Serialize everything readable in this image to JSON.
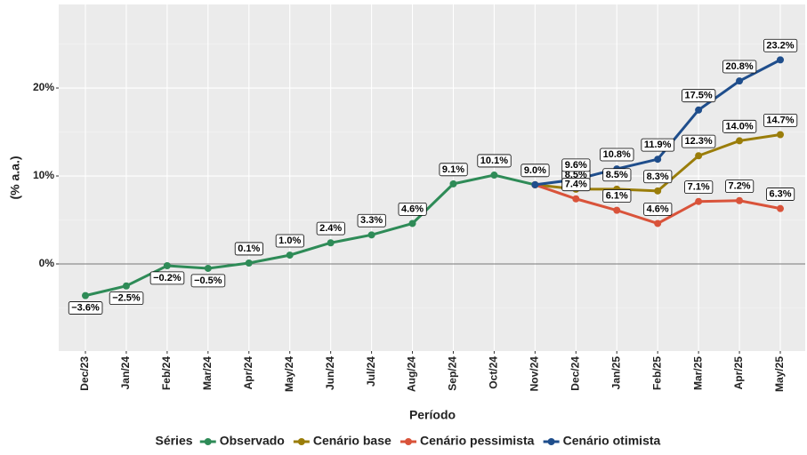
{
  "chart_data": {
    "type": "line",
    "categories": [
      "Dec/23",
      "Jan/24",
      "Feb/24",
      "Mar/24",
      "Apr/24",
      "May/24",
      "Jun/24",
      "Jul/24",
      "Aug/24",
      "Sep/24",
      "Oct/24",
      "Nov/24",
      "Dec/24",
      "Jan/25",
      "Feb/25",
      "Mar/25",
      "Apr/25",
      "May/25"
    ],
    "series": [
      {
        "name": "Observado",
        "color": "#2e8b57",
        "values": [
          -3.6,
          -2.5,
          -0.2,
          -0.5,
          0.1,
          1.0,
          2.4,
          3.3,
          4.6,
          9.1,
          10.1,
          9.0,
          null,
          null,
          null,
          null,
          null,
          null
        ],
        "value_labels": [
          "−3.6%",
          "−2.5%",
          "−0.2%",
          "−0.5%",
          "0.1%",
          "1.0%",
          "2.4%",
          "3.3%",
          "4.6%",
          "9.1%",
          "10.1%",
          "9.0%",
          null,
          null,
          null,
          null,
          null,
          null
        ]
      },
      {
        "name": "Cenário base",
        "color": "#9a7d0a",
        "values": [
          null,
          null,
          null,
          null,
          null,
          null,
          null,
          null,
          null,
          null,
          null,
          9.0,
          8.5,
          8.5,
          8.3,
          12.3,
          14.0,
          14.7
        ],
        "value_labels": [
          null,
          null,
          null,
          null,
          null,
          null,
          null,
          null,
          null,
          null,
          null,
          null,
          "8.5%",
          "8.5%",
          "8.3%",
          "12.3%",
          "14.0%",
          "14.7%"
        ]
      },
      {
        "name": "Cenário pessimista",
        "color": "#d9533a",
        "values": [
          null,
          null,
          null,
          null,
          null,
          null,
          null,
          null,
          null,
          null,
          null,
          9.0,
          7.4,
          6.1,
          4.6,
          7.1,
          7.2,
          6.3
        ],
        "value_labels": [
          null,
          null,
          null,
          null,
          null,
          null,
          null,
          null,
          null,
          null,
          null,
          null,
          "7.4%",
          "6.1%",
          "4.6%",
          "7.1%",
          "7.2%",
          "6.3%"
        ]
      },
      {
        "name": "Cenário otimista",
        "color": "#1f4e8c",
        "values": [
          null,
          null,
          null,
          null,
          null,
          null,
          null,
          null,
          null,
          null,
          null,
          9.0,
          9.6,
          10.8,
          11.9,
          17.5,
          20.8,
          23.2
        ],
        "value_labels": [
          null,
          null,
          null,
          null,
          null,
          null,
          null,
          null,
          null,
          null,
          null,
          null,
          "9.6%",
          "10.8%",
          "11.9%",
          "17.5%",
          "20.8%",
          "23.2%"
        ]
      }
    ],
    "ylim": [
      -9.9,
      29.5
    ],
    "yticks": [
      {
        "value": 0,
        "label": "0%"
      },
      {
        "value": 10,
        "label": "10%"
      },
      {
        "value": 20,
        "label": "20%"
      }
    ],
    "hline": 0,
    "ylabel": "(% a.a.)",
    "xlabel": "Período",
    "legend_title": "Séries",
    "legend": "bottom",
    "grid": true
  }
}
